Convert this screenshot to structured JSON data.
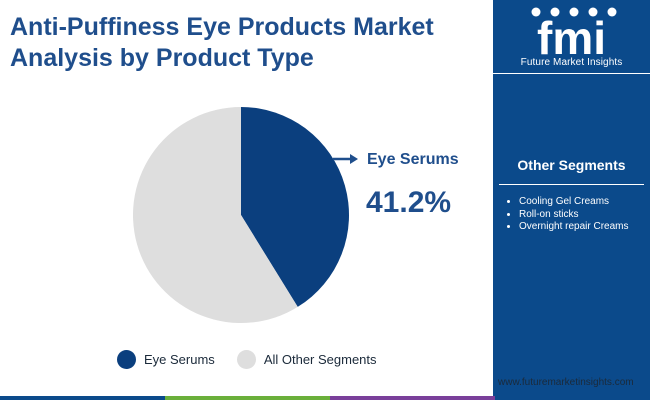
{
  "header": {
    "title_line1": "Anti-Puffiness Eye Products Market",
    "title_line2": "Analysis by Product Type"
  },
  "brand": {
    "logo_text": "fmi",
    "name": "Future Market Insights",
    "website": "www.futuremarketinsights.com"
  },
  "sidebar": {
    "heading": "Other Segments",
    "items": [
      "Cooling Gel Creams",
      "Roll-on sticks",
      "Overnight repair Creams"
    ]
  },
  "callout": {
    "label": "Eye Serums",
    "value": "41.2%"
  },
  "colors": {
    "brand_blue": "#0b4a8b",
    "title_blue": "#1f4e8c",
    "primary_slice": "#0b3f7e",
    "other_slice": "#dedede",
    "stripe": [
      "#0b4a8b",
      "#6aaf3a",
      "#7a3f9a",
      "#0b4a8b"
    ]
  },
  "chart_data": {
    "type": "pie",
    "categories": [
      "Eye Serums",
      "All Other Segments"
    ],
    "values": [
      41.2,
      58.8
    ],
    "legend": [
      "Eye Serums",
      "All Other Segments"
    ],
    "legend_position": "bottom",
    "colors": [
      "#0b3f7e",
      "#dedede"
    ]
  }
}
